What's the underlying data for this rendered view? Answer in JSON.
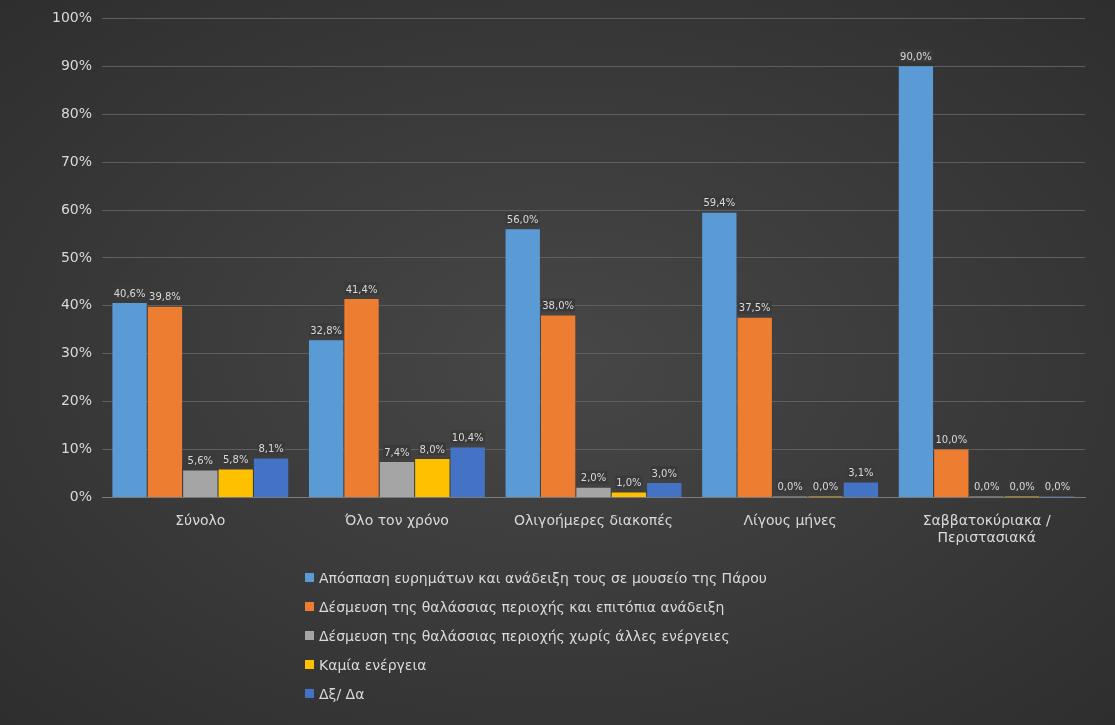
{
  "chart_data": {
    "type": "bar",
    "categories": [
      "Σύνολο",
      "Όλο τον χρόνο",
      "Ολιγοήμερες διακοπές",
      "Λίγους μήνες",
      "Σαββατοκύριακα / Περιστασιακά"
    ],
    "series": [
      {
        "name": "Απόσπαση ευρημάτων και ανάδειξη τους σε μουσείο της Πάρου",
        "color": "#5b9bd5",
        "values": [
          40.6,
          32.8,
          56.0,
          59.4,
          90.0
        ],
        "value_labels": [
          "40,6%",
          "32,8%",
          "56,0%",
          "59,4%",
          "90,0%"
        ]
      },
      {
        "name": "Δέσμευση της θαλάσσιας περιοχής και επιτόπια ανάδειξη",
        "color": "#ed7d31",
        "values": [
          39.8,
          41.4,
          38.0,
          37.5,
          10.0
        ],
        "value_labels": [
          "39,8%",
          "41,4%",
          "38,0%",
          "37,5%",
          "10,0%"
        ]
      },
      {
        "name": "Δέσμευση της θαλάσσιας περιοχής χωρίς άλλες ενέργειες",
        "color": "#a5a5a5",
        "values": [
          5.6,
          7.4,
          2.0,
          0.0,
          0.0
        ],
        "value_labels": [
          "5,6%",
          "7,4%",
          "2,0%",
          "0,0%",
          "0,0%"
        ]
      },
      {
        "name": "Καμία ενέργεια",
        "color": "#ffc000",
        "values": [
          5.8,
          8.0,
          1.0,
          0.0,
          0.0
        ],
        "value_labels": [
          "5,8%",
          "8,0%",
          "1,0%",
          "0,0%",
          "0,0%"
        ]
      },
      {
        "name": "Δξ/ Δα",
        "color": "#4472c4",
        "values": [
          8.1,
          10.4,
          3.0,
          3.1,
          0.0
        ],
        "value_labels": [
          "8,1%",
          "10,4%",
          "3,0%",
          "3,1%",
          "0,0%"
        ]
      }
    ],
    "ylim": [
      0,
      100
    ],
    "yticks": [
      {
        "value": 0,
        "label": "0%"
      },
      {
        "value": 10,
        "label": "10%"
      },
      {
        "value": 20,
        "label": "20%"
      },
      {
        "value": 30,
        "label": "30%"
      },
      {
        "value": 40,
        "label": "40%"
      },
      {
        "value": 50,
        "label": "50%"
      },
      {
        "value": 60,
        "label": "60%"
      },
      {
        "value": 70,
        "label": "70%"
      },
      {
        "value": 80,
        "label": "80%"
      },
      {
        "value": 90,
        "label": "90%"
      },
      {
        "value": 100,
        "label": "100%"
      }
    ],
    "grid": "y",
    "legend": "bottom"
  }
}
